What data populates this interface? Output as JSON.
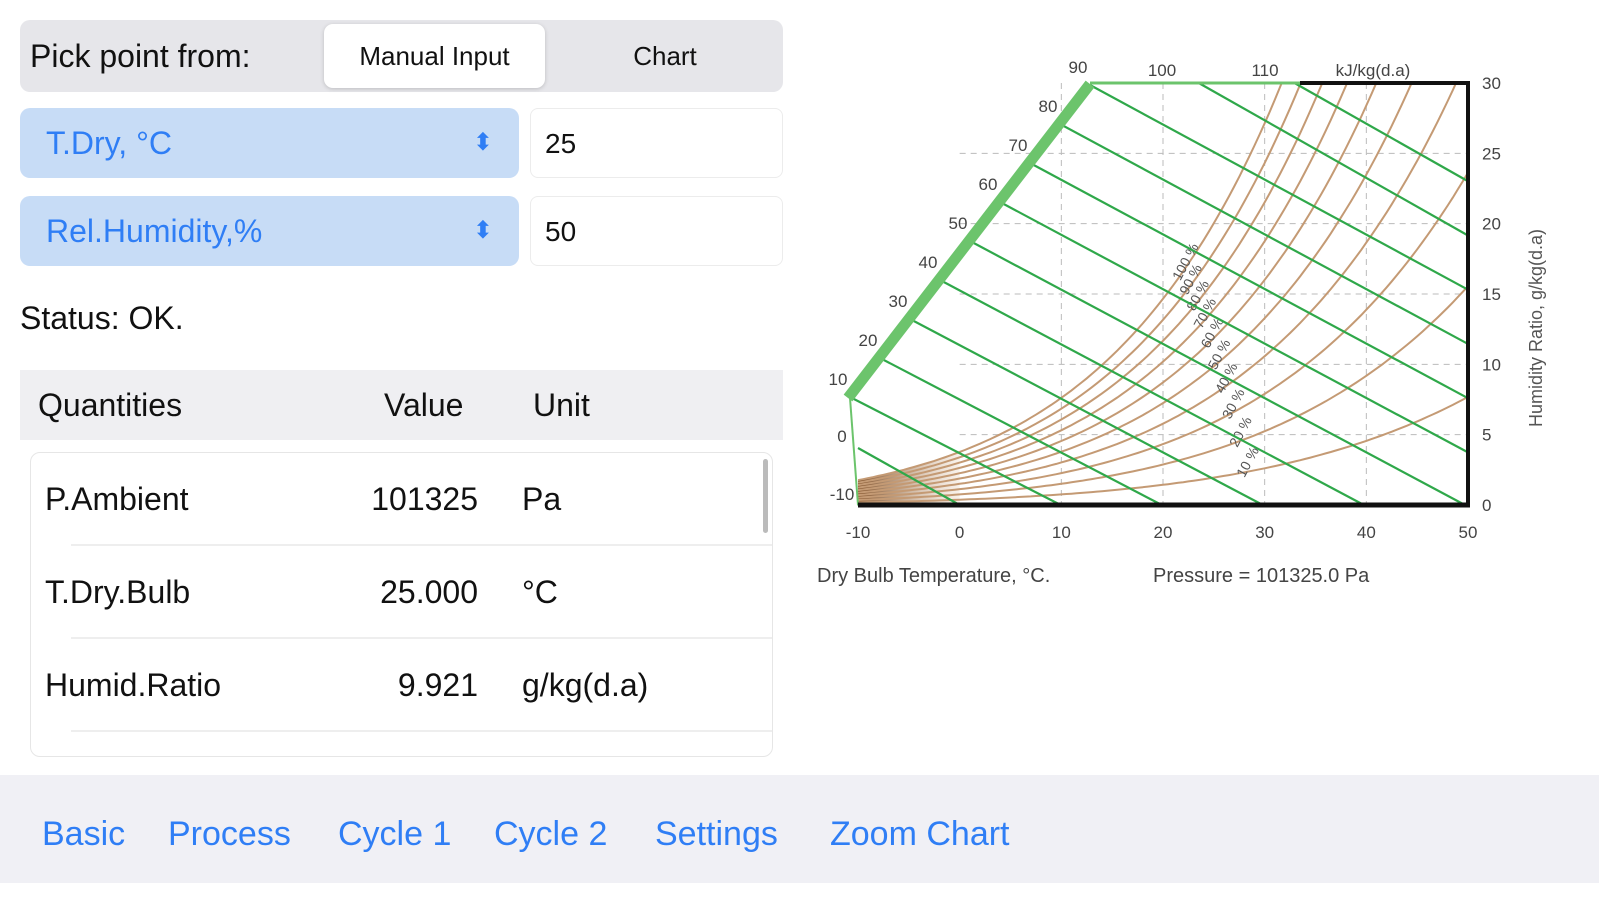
{
  "picker": {
    "label": "Pick point from:",
    "options": [
      "Manual Input",
      "Chart"
    ],
    "selected": "Manual Input"
  },
  "inputs": [
    {
      "quantity": "T.Dry, °C",
      "value": "25"
    },
    {
      "quantity": "Rel.Humidity,%",
      "value": "50"
    }
  ],
  "status": "Status: OK.",
  "table": {
    "headers": [
      "Quantities",
      "Value",
      "Unit"
    ],
    "rows": [
      [
        "P.Ambient",
        "101325",
        "Pa"
      ],
      [
        "T.Dry.Bulb",
        "25.000",
        "°C"
      ],
      [
        "Humid.Ratio",
        "9.921",
        "g/kg(d.a)"
      ]
    ]
  },
  "tabs": [
    "Basic",
    "Process",
    "Cycle 1",
    "Cycle 2",
    "Settings",
    "Zoom Chart"
  ],
  "chart_data": {
    "type": "line",
    "xlabel": "Dry Bulb Temperature, °C.",
    "pressure_label": "Pressure =  101325.0 Pa",
    "ylabel": "Humidity Ratio, g/kg(d.a)",
    "xlim": [
      -10,
      50
    ],
    "ylim": [
      0,
      30
    ],
    "xticks": [
      "-10",
      "0",
      "10",
      "20",
      "30",
      "40",
      "50"
    ],
    "yticks": [
      "0",
      "5",
      "10",
      "15",
      "20",
      "25",
      "30"
    ],
    "rh_curves": [
      10,
      20,
      30,
      40,
      50,
      60,
      70,
      80,
      90,
      100
    ],
    "rh_labels": [
      "10 %",
      "20 %",
      "30 %",
      "40 %",
      "50 %",
      "60 %",
      "70 %",
      "80 %",
      "90 %",
      "100 %"
    ],
    "enthalpy_lines": [
      -10,
      0,
      10,
      20,
      30,
      40,
      50,
      60,
      70,
      80,
      90,
      100,
      110
    ],
    "enthalpy_labels": [
      "-10",
      "0",
      "10",
      "20",
      "30",
      "40",
      "50",
      "60",
      "70",
      "80",
      "90",
      "100",
      "110"
    ],
    "enthalpy_unit": "kJ/kg(d.a)",
    "grid": true,
    "colors": {
      "rh": "#c49a74",
      "enthalpy": "#2fa84a",
      "scale": "#6cc46c",
      "axis": "#111111",
      "grid": "#bbbbbb"
    }
  }
}
